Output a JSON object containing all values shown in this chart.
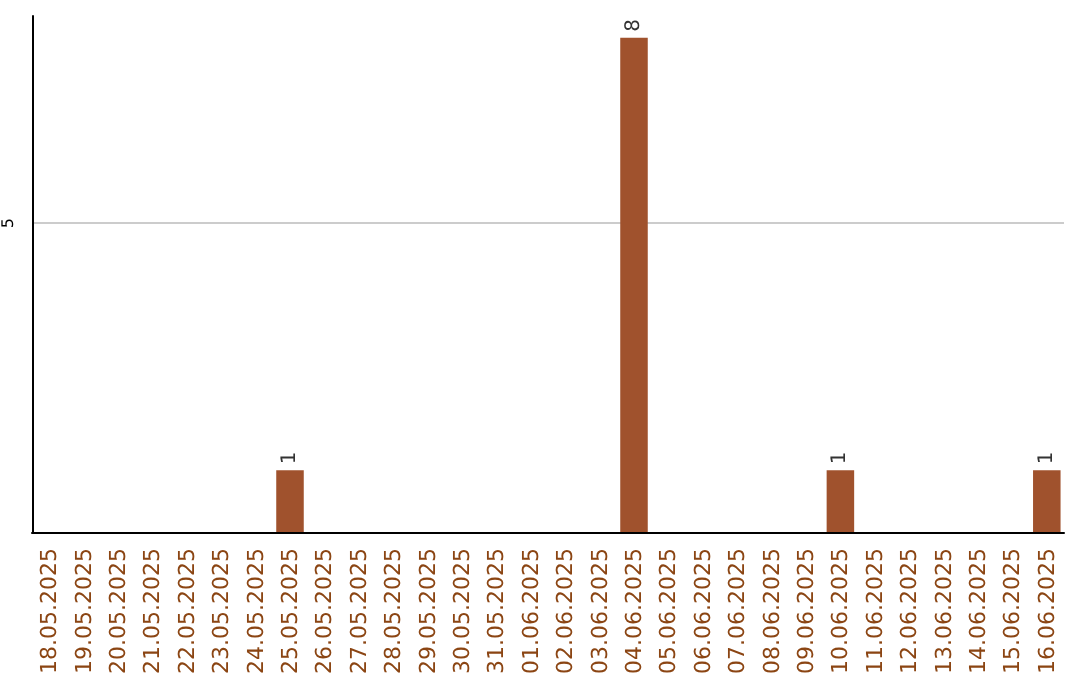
{
  "chart_data": {
    "type": "bar",
    "categories": [
      "18.05.2025",
      "19.05.2025",
      "20.05.2025",
      "21.05.2025",
      "22.05.2025",
      "23.05.2025",
      "24.05.2025",
      "25.05.2025",
      "26.05.2025",
      "27.05.2025",
      "28.05.2025",
      "29.05.2025",
      "30.05.2025",
      "31.05.2025",
      "01.06.2025",
      "02.06.2025",
      "03.06.2025",
      "04.06.2025",
      "05.06.2025",
      "06.06.2025",
      "07.06.2025",
      "08.06.2025",
      "09.06.2025",
      "10.06.2025",
      "11.06.2025",
      "12.06.2025",
      "13.06.2025",
      "14.06.2025",
      "15.06.2025",
      "16.06.2025"
    ],
    "values": [
      0,
      0,
      0,
      0,
      0,
      0,
      0,
      1,
      0,
      0,
      0,
      0,
      0,
      0,
      0,
      0,
      0,
      8,
      0,
      0,
      0,
      0,
      0,
      1,
      0,
      0,
      0,
      0,
      0,
      1
    ],
    "value_labels": [
      null,
      null,
      null,
      null,
      null,
      null,
      null,
      "1",
      null,
      null,
      null,
      null,
      null,
      null,
      null,
      null,
      null,
      "8",
      null,
      null,
      null,
      null,
      null,
      "1",
      null,
      null,
      null,
      null,
      null,
      "1"
    ],
    "color": "#a0522d",
    "ylim": [
      0,
      8.35
    ],
    "yticks": [
      5
    ],
    "grid": "y"
  }
}
